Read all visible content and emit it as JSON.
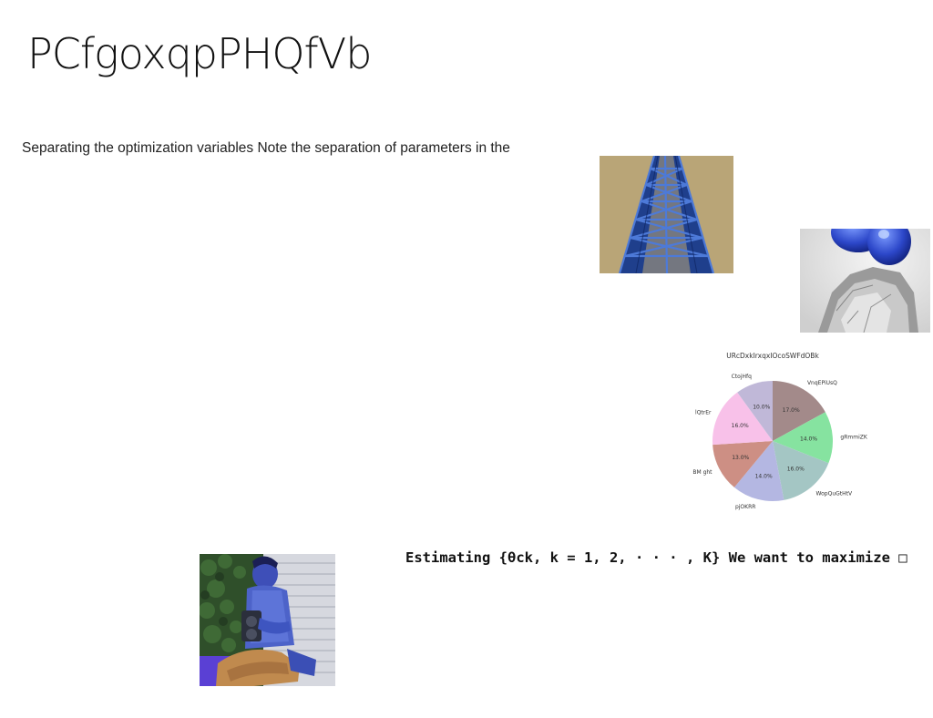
{
  "page": {
    "title": "PCfgoxqpPHQfVb",
    "paragraph": "Separating the optimization variables Note the separation of parameters in the",
    "equation": "Estimating {θck, k = 1, 2, · · · , K} We want to maximize □"
  },
  "chart_data": {
    "type": "pie",
    "title": "URcDxkIrxqxIOcoSWFdOBk",
    "categories": [
      "VnqEPiUsQ",
      "gRmmiZK",
      "WopQuGtHtV",
      "pjOKRR",
      "BM ght",
      "lQtrEr",
      "CtojHfq"
    ],
    "values": [
      17.0,
      14.0,
      16.0,
      14.0,
      13.0,
      16.0,
      10.0
    ],
    "labels": [
      "17.0%",
      "14.0%",
      "16.0%",
      "14.0%",
      "13.0%",
      "16.0%",
      "10.0%"
    ],
    "colors": [
      "#a38a8a",
      "#86e3a0",
      "#a4c6c4",
      "#b4b7e2",
      "#cd8f84",
      "#f8c1e9",
      "#c0b8d8"
    ],
    "start_angle_deg": 90,
    "direction": "clockwise"
  }
}
